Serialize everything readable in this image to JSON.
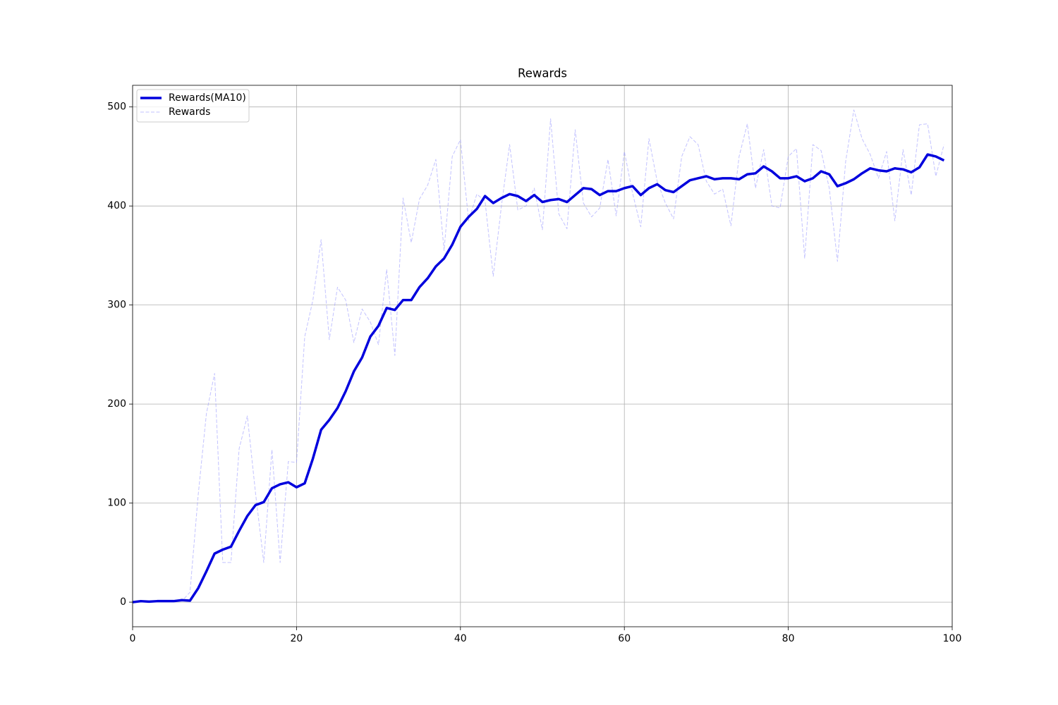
{
  "chart_data": {
    "type": "line",
    "title": "Rewards",
    "x": [
      0,
      1,
      2,
      3,
      4,
      5,
      6,
      7,
      8,
      9,
      10,
      11,
      12,
      13,
      14,
      15,
      16,
      17,
      18,
      19,
      20,
      21,
      22,
      23,
      24,
      25,
      26,
      27,
      28,
      29,
      30,
      31,
      32,
      33,
      34,
      35,
      36,
      37,
      38,
      39,
      40,
      41,
      42,
      43,
      44,
      45,
      46,
      47,
      48,
      49,
      50,
      51,
      52,
      53,
      54,
      55,
      56,
      57,
      58,
      59,
      60,
      61,
      62,
      63,
      64,
      65,
      66,
      67,
      68,
      69,
      70,
      71,
      72,
      73,
      74,
      75,
      76,
      77,
      78,
      79,
      80,
      81,
      82,
      83,
      84,
      85,
      86,
      87,
      88,
      89,
      90,
      91,
      92,
      93,
      94,
      95,
      96,
      97,
      98,
      99
    ],
    "series": [
      {
        "name": "Rewards(MA10)",
        "color": "#0000dd",
        "style": "solid",
        "values": [
          0,
          1,
          0.5,
          1,
          1,
          1,
          2,
          1.5,
          14,
          31,
          49,
          53,
          56,
          72,
          87,
          98,
          101,
          115,
          119,
          121,
          116,
          120,
          145,
          174,
          184,
          196,
          213,
          233,
          247,
          268,
          279,
          297,
          295,
          305,
          305,
          318,
          327,
          339,
          347,
          361,
          379,
          389,
          397,
          410,
          403,
          408,
          412,
          410,
          405,
          411,
          404,
          406,
          407,
          404,
          411,
          418,
          417,
          411,
          415,
          415,
          418,
          420,
          411,
          418,
          422,
          416,
          414,
          420,
          426,
          428,
          430,
          427,
          428,
          428,
          427,
          432,
          433,
          440,
          435,
          428,
          428,
          430,
          425,
          428,
          435,
          432,
          420,
          423,
          427,
          433,
          438,
          436,
          435,
          438,
          437,
          434,
          439,
          452,
          450,
          446
        ]
      },
      {
        "name": "Rewards",
        "color": "#9999ff",
        "style": "dashed",
        "values": [
          0,
          0,
          1,
          1,
          1,
          1,
          1,
          10,
          108,
          190,
          231,
          40,
          40,
          155,
          188,
          110,
          40,
          154,
          40,
          142,
          141,
          268,
          305,
          366,
          265,
          318,
          305,
          262,
          296,
          283,
          260,
          336,
          249,
          408,
          363,
          407,
          421,
          447,
          355,
          450,
          467,
          385,
          412,
          405,
          329,
          400,
          462,
          396,
          400,
          418,
          376,
          488,
          392,
          377,
          477,
          403,
          389,
          398,
          447,
          390,
          455,
          413,
          379,
          468,
          425,
          403,
          387,
          450,
          470,
          462,
          425,
          412,
          417,
          380,
          450,
          483,
          418,
          457,
          400,
          398,
          450,
          458,
          347,
          462,
          456,
          418,
          344,
          445,
          497,
          468,
          452,
          428,
          455,
          385,
          457,
          411,
          482,
          483,
          430,
          462
        ]
      }
    ],
    "xlim": [
      0,
      100
    ],
    "xticks": [
      0,
      20,
      40,
      60,
      80,
      100
    ],
    "ylim": [
      -24.85,
      521.85
    ],
    "yticks": [
      0,
      100,
      200,
      300,
      400,
      500
    ],
    "grid": true,
    "legend": "upper left"
  }
}
